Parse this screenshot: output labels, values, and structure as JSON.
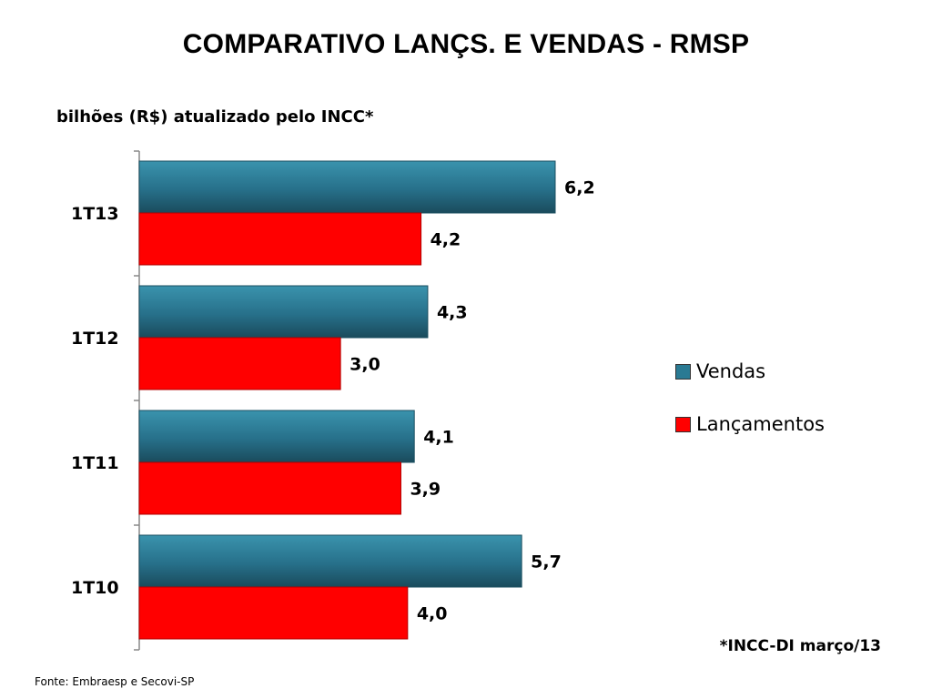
{
  "title": "COMPARATIVO LANÇS. E VENDAS - RMSP",
  "subtitle": "bilhões (R$) atualizado pelo INCC*",
  "footnote": "*INCC-DI março/13",
  "source": "Fonte: Embraesp e Secovi-SP",
  "colors": {
    "vendas": "#2a7a93",
    "vendas_dark": "#1b4f60",
    "lancamentos": "#ff0000",
    "axis": "#888888"
  },
  "legend": {
    "vendas_label": "Vendas",
    "lancamentos_label": "Lançamentos"
  },
  "chart_data": {
    "type": "bar",
    "orientation": "horizontal",
    "title": "COMPARATIVO LANÇS. E VENDAS - RMSP",
    "subtitle": "bilhões (R$) atualizado pelo INCC*",
    "categories": [
      "1T13",
      "1T12",
      "1T11",
      "1T10"
    ],
    "series": [
      {
        "name": "Vendas",
        "values": [
          6.2,
          4.3,
          4.1,
          5.7
        ],
        "labels": [
          "6,2",
          "4,3",
          "4,1",
          "5,7"
        ]
      },
      {
        "name": "Lançamentos",
        "values": [
          4.2,
          3.0,
          3.9,
          4.0
        ],
        "labels": [
          "4,2",
          "3,0",
          "3,9",
          "4,0"
        ]
      }
    ],
    "xlim": [
      0,
      7
    ],
    "grid": false,
    "legend_position": "right"
  }
}
